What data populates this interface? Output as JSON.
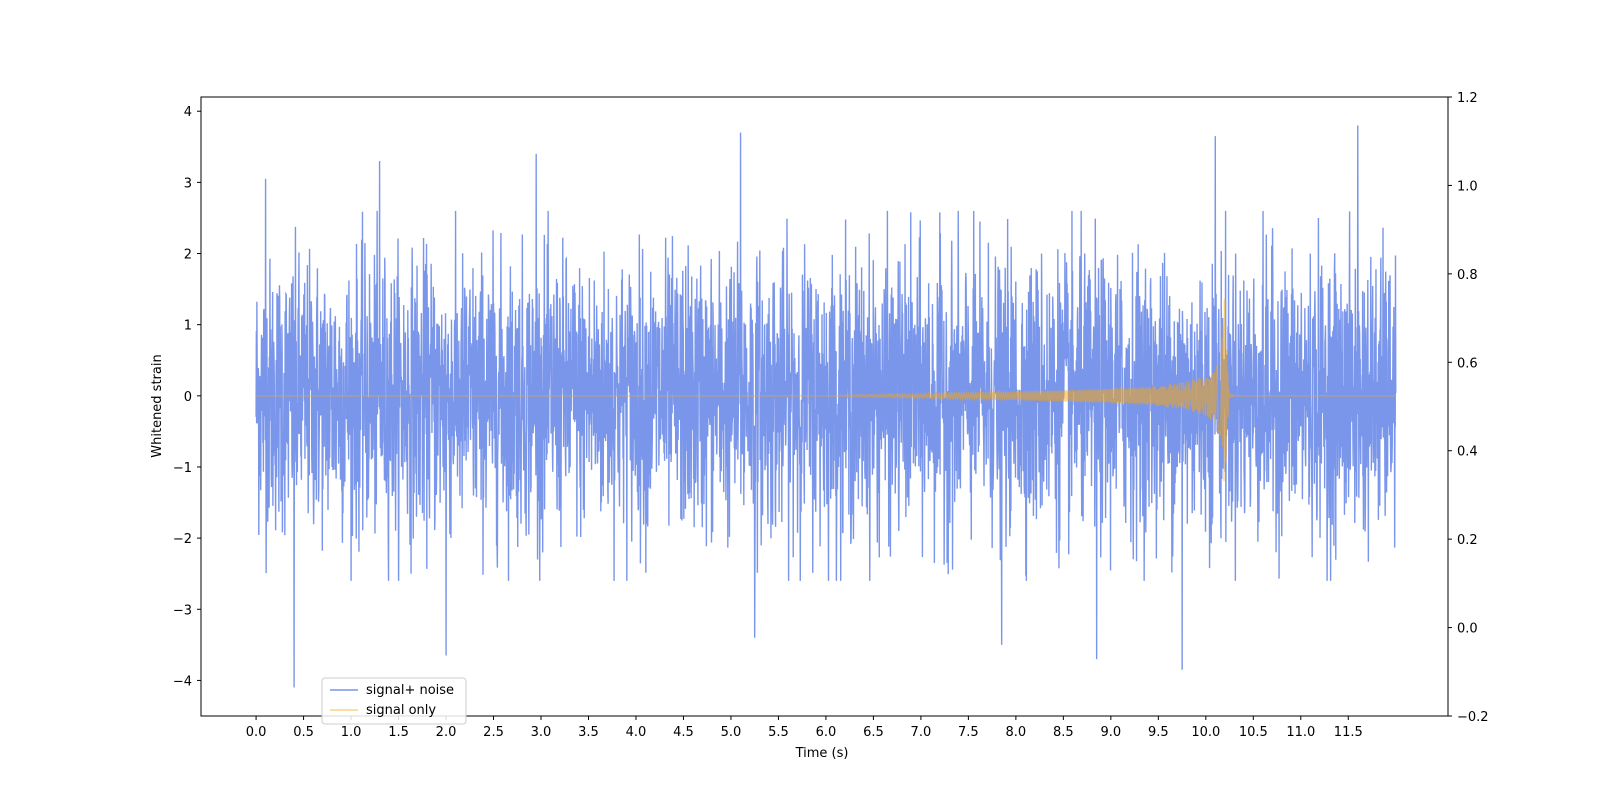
{
  "chart_data": {
    "type": "line",
    "title": "",
    "xlabel": "Time (s)",
    "ylabel": "Whitened strain",
    "xlim": [
      -0.58,
      12.55
    ],
    "ylim": [
      -4.5,
      4.2
    ],
    "ylim_right": [
      -0.2,
      1.2
    ],
    "x_ticks": [
      "0.0",
      "0.5",
      "1.0",
      "1.5",
      "2.0",
      "2.5",
      "3.0",
      "3.5",
      "4.0",
      "4.5",
      "5.0",
      "5.5",
      "6.0",
      "6.5",
      "7.0",
      "7.5",
      "8.0",
      "8.5",
      "9.0",
      "9.5",
      "10.0",
      "10.5",
      "11.0",
      "11.5"
    ],
    "y_ticks": [
      "4",
      "3",
      "2",
      "1",
      "0",
      "−1",
      "−2",
      "−3",
      "−4"
    ],
    "y_ticks_right": [
      "1.2",
      "1.0",
      "0.8",
      "0.6",
      "0.4",
      "0.2",
      "0.0",
      "−0.2"
    ],
    "grid": false,
    "legend_position": "lower-left",
    "series": [
      {
        "name": "signal+ noise",
        "color": "#4169e1",
        "alpha": 0.7,
        "description": "whitened strain (Gaussian noise plus injected chirp)",
        "x_range": [
          0.0,
          12.0
        ],
        "envelope_typical": [
          -2.2,
          2.2
        ],
        "notable_peaks": [
          [
            0.1,
            3.05
          ],
          [
            0.4,
            -4.1
          ],
          [
            1.3,
            3.3
          ],
          [
            2.0,
            -3.65
          ],
          [
            2.95,
            3.4
          ],
          [
            5.1,
            3.7
          ],
          [
            5.25,
            -3.4
          ],
          [
            7.85,
            -3.5
          ],
          [
            8.85,
            -3.7
          ],
          [
            9.75,
            -3.85
          ],
          [
            10.1,
            3.65
          ],
          [
            11.6,
            3.8
          ]
        ]
      },
      {
        "name": "signal only",
        "color": "#ffa500",
        "alpha": 0.5,
        "description": "chirp waveform, amplitude growing toward merger",
        "points": [
          [
            0.0,
            0.0
          ],
          [
            6.0,
            0.0
          ],
          [
            6.5,
            0.02
          ],
          [
            7.0,
            0.03
          ],
          [
            7.5,
            0.05
          ],
          [
            8.0,
            0.06
          ],
          [
            8.5,
            0.08
          ],
          [
            9.0,
            0.1
          ],
          [
            9.5,
            0.14
          ],
          [
            9.8,
            0.2
          ],
          [
            10.0,
            0.28
          ],
          [
            10.1,
            0.4
          ],
          [
            10.15,
            0.55
          ],
          [
            10.2,
            1.35
          ],
          [
            10.21,
            -0.92
          ],
          [
            10.25,
            0.03
          ],
          [
            10.3,
            0.0
          ],
          [
            12.0,
            0.0
          ]
        ]
      }
    ]
  }
}
